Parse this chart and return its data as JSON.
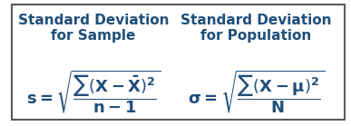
{
  "title_sample": "Standard Deviation\nfor Sample",
  "title_population": "Standard Deviation\nfor Population",
  "formula_sample": "s = $\\sqrt{\\dfrac{\\sum\\left(X - \\bar{X}\\right)^{2}}{n - 1}}$",
  "formula_population": "$\\sigma = \\sqrt{\\dfrac{\\sum\\left(X - \\mu\\right)^{2}}{N}}$",
  "bg_color": "#f0f0f0",
  "border_color": "#4472c4",
  "title_color": "#1f4e79",
  "formula_color": "#1f4e79",
  "title_fontsize": 11,
  "formula_fontsize": 13,
  "fig_width": 3.87,
  "fig_height": 1.39,
  "dpi": 100
}
